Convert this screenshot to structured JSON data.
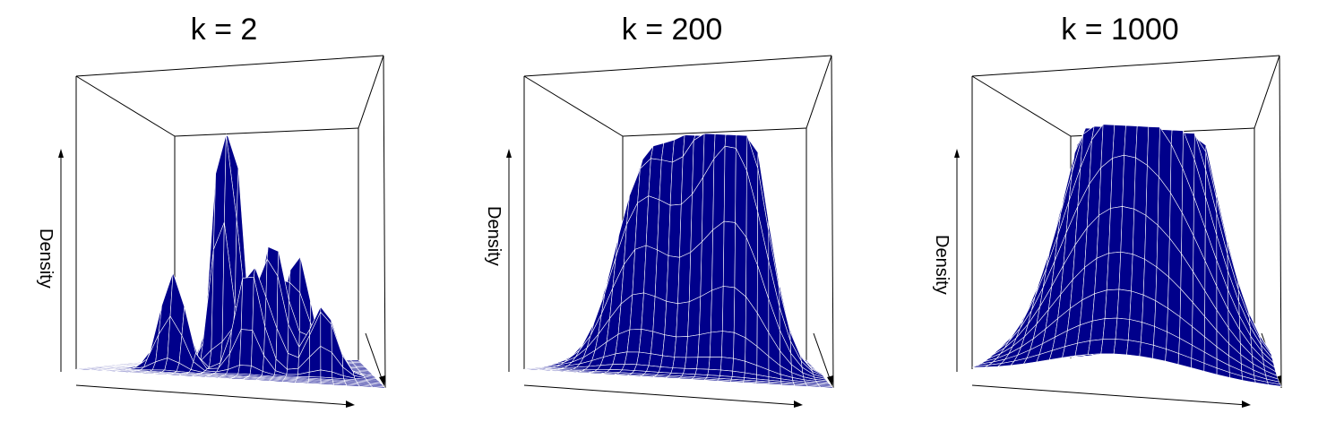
{
  "chart_data": [
    {
      "type": "surface",
      "title": "k = 2",
      "zlabel": "Density",
      "surface_color": "#00008B",
      "mesh_color": "#ffffff",
      "peaks": [
        {
          "x": 0.4,
          "y": 0.45,
          "height": 1.0,
          "spread": 0.035
        },
        {
          "x": 0.44,
          "y": 0.5,
          "height": 0.88,
          "spread": 0.035
        },
        {
          "x": 0.25,
          "y": 0.3,
          "height": 0.4,
          "spread": 0.045
        },
        {
          "x": 0.6,
          "y": 0.45,
          "height": 0.55,
          "spread": 0.05
        },
        {
          "x": 0.7,
          "y": 0.55,
          "height": 0.5,
          "spread": 0.05
        },
        {
          "x": 0.52,
          "y": 0.35,
          "height": 0.45,
          "spread": 0.045
        },
        {
          "x": 0.8,
          "y": 0.4,
          "height": 0.3,
          "spread": 0.05
        },
        {
          "x": 0.35,
          "y": 0.65,
          "height": 0.3,
          "spread": 0.05
        }
      ]
    },
    {
      "type": "surface",
      "title": "k = 200",
      "zlabel": "Density",
      "surface_color": "#00008B",
      "mesh_color": "#ffffff",
      "peaks": [
        {
          "x": 0.3,
          "y": 0.45,
          "height": 0.8,
          "spread": 0.11
        },
        {
          "x": 0.55,
          "y": 0.5,
          "height": 1.0,
          "spread": 0.12
        },
        {
          "x": 0.7,
          "y": 0.45,
          "height": 0.8,
          "spread": 0.1
        }
      ]
    },
    {
      "type": "surface",
      "title": "k = 1000",
      "zlabel": "Density",
      "surface_color": "#00008B",
      "mesh_color": "#ffffff",
      "peaks": [
        {
          "x": 0.5,
          "y": 0.5,
          "height": 1.0,
          "spread": 0.22
        },
        {
          "x": 0.35,
          "y": 0.4,
          "height": 0.55,
          "spread": 0.15
        },
        {
          "x": 0.65,
          "y": 0.45,
          "height": 0.55,
          "spread": 0.15
        }
      ]
    }
  ]
}
